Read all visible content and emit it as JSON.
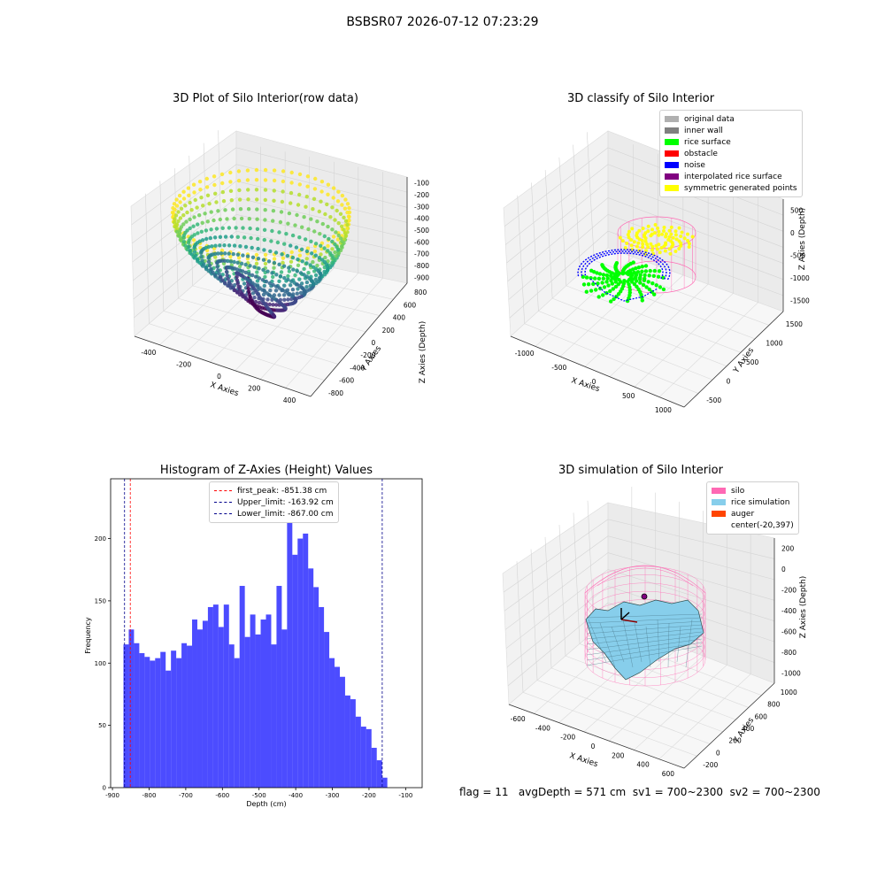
{
  "suptitle": "BSBSR07 2026-07-12 07:23:29",
  "footer": "flag = 11   avgDepth = 571 cm  sv1 = 700~2300  sv2 = 700~2300",
  "panels": {
    "raw": {
      "title": "3D Plot of Silo Interior(row data)",
      "xlabel": "X Axies",
      "ylabel": "Y Axies",
      "zlabel": "Z Axies (Depth)",
      "xticks": [
        "-400",
        "-200",
        "0",
        "200",
        "400"
      ],
      "yticks": [
        "-800",
        "-600",
        "-400",
        "-200",
        "0",
        "200",
        "400",
        "600",
        "800"
      ],
      "zticks": [
        "-100",
        "-200",
        "-300",
        "-400",
        "-500",
        "-600",
        "-700",
        "-800",
        "-900"
      ]
    },
    "classify": {
      "title": "3D classify of Silo Interior",
      "xlabel": "X Axies",
      "ylabel": "Y Axies",
      "zlabel": "Z Axies (Depth)",
      "xticks": [
        "-1000",
        "-500",
        "0",
        "500",
        "1000"
      ],
      "yticks": [
        "-500",
        "0",
        "500",
        "1000",
        "1500"
      ],
      "zticks": [
        "500",
        "0",
        "-500",
        "-1000",
        "-1500"
      ],
      "legend": [
        {
          "label": "original data",
          "color": "#b0b0b0"
        },
        {
          "label": "inner wall",
          "color": "#808080"
        },
        {
          "label": "rice surface",
          "color": "#00ff00"
        },
        {
          "label": "obstacle",
          "color": "#ff0000"
        },
        {
          "label": "noise",
          "color": "#0000ff"
        },
        {
          "label": "interpolated rice surface",
          "color": "#800080"
        },
        {
          "label": "symmetric generated points",
          "color": "#ffff00"
        }
      ]
    },
    "simulation": {
      "title": "3D simulation of Silo Interior",
      "xlabel": "X Axies",
      "ylabel": "Y Axies",
      "zlabel": "Z Axies (Depth)",
      "xticks": [
        "-600",
        "-400",
        "-200",
        "0",
        "200",
        "400",
        "600"
      ],
      "yticks": [
        "-200",
        "0",
        "200",
        "400",
        "600",
        "800",
        "1000"
      ],
      "zticks": [
        "200",
        "0",
        "-200",
        "-400",
        "-600",
        "-800",
        "-1000"
      ],
      "legend": [
        {
          "label": "silo",
          "color": "#ff69b4"
        },
        {
          "label": "rice simulation",
          "color": "#87ceeb"
        },
        {
          "label": "auger",
          "color": "#ff4500"
        },
        {
          "label": "center(-20,397)",
          "color": ""
        }
      ]
    }
  },
  "chart_data": {
    "type": "bar",
    "title": "Histogram of Z-Axies (Height) Values",
    "xlabel": "Depth (cm)",
    "ylabel": "Frequency",
    "xlim": [
      -905,
      -55
    ],
    "ylim": [
      0,
      248
    ],
    "xticks": [
      -900,
      -800,
      -700,
      -600,
      -500,
      -400,
      -300,
      -200,
      -100
    ],
    "yticks": [
      0,
      50,
      100,
      150,
      200
    ],
    "bin_start": -870,
    "bin_width": 14.4,
    "color": "#0000ff",
    "values": [
      115,
      127,
      116,
      108,
      105,
      102,
      104,
      109,
      94,
      110,
      104,
      116,
      114,
      135,
      127,
      134,
      145,
      147,
      129,
      147,
      115,
      104,
      162,
      121,
      139,
      123,
      135,
      139,
      115,
      162,
      127,
      236,
      187,
      200,
      204,
      176,
      161,
      145,
      125,
      104,
      97,
      89,
      74,
      71,
      57,
      49,
      47,
      32,
      22,
      8
    ],
    "lines": [
      {
        "label": "first_peak: -851.38 cm",
        "x": -851.38,
        "color": "#ff0000"
      },
      {
        "label": "Upper_limit: -163.92 cm",
        "x": -163.92,
        "color": "#00008b"
      },
      {
        "label": "Lower_limit: -867.00 cm",
        "x": -867.0,
        "color": "#00008b"
      }
    ]
  }
}
